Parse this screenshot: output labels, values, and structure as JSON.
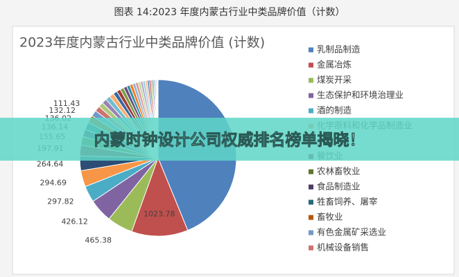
{
  "figure_caption": "图表 14:2023 年度内蒙古行业中类品牌价值（计数）",
  "banner": {
    "text": "内蒙时钟设计公司权威排名榜单揭晓！"
  },
  "chart_data": {
    "type": "pie",
    "title": "2023年度内蒙古行业中类品牌价值 (计数)",
    "categories": [
      "乳制品制造",
      "金属冶炼",
      "煤炭开采",
      "生态保护和环境治理业",
      "酒的制造",
      "化学原料和化学品制造业",
      null,
      "餐饮业",
      "农林畜牧业",
      "食品制造业",
      "牲畜饲养、屠宰",
      "畜牧业",
      "有色金属矿采选业",
      "机械设备销售",
      null,
      null,
      null,
      null,
      null,
      null,
      null,
      null,
      null,
      null,
      null,
      null,
      null,
      null,
      null,
      null,
      null,
      null,
      null,
      null,
      null,
      null,
      null,
      null,
      null
    ],
    "values": [
      3850,
      1023.78,
      465.38,
      426.12,
      297.82,
      294.69,
      264.64,
      197.91,
      155.65,
      136.14,
      136.02,
      132.12,
      111.43,
      97,
      92,
      88,
      85,
      80,
      75,
      70,
      66,
      62,
      58,
      55,
      52,
      49,
      46,
      43,
      40,
      37,
      34,
      31,
      28,
      25,
      22,
      19,
      16,
      13,
      10
    ],
    "value_labels": [
      null,
      "1023.78",
      "465.38",
      "426.12",
      "297.82",
      "294.69",
      "264.64",
      "197.91",
      "155.65",
      "136.14",
      "136.02",
      "132.12",
      "111.43",
      null,
      null,
      null,
      null,
      null,
      null,
      null,
      null,
      null,
      null,
      null,
      null,
      null,
      null,
      null,
      null,
      null,
      null,
      null,
      null,
      null,
      null,
      null,
      null,
      null,
      null
    ],
    "colors": [
      "#4f81bd",
      "#c0504d",
      "#9bbb59",
      "#8064a2",
      "#4bacc6",
      "#f79646",
      "#2c4d75",
      "#772c2a",
      "#5f7530",
      "#4d3b62",
      "#276a7c",
      "#b65708",
      "#729aca",
      "#cd7371",
      "#afc97a",
      "#9983b5",
      "#6fbdd1",
      "#f9ab6b",
      "#3a67a0",
      "#9f3b38",
      "#7f9c40",
      "#664f83",
      "#348da5",
      "#f27b17",
      "#95b3d7",
      "#d99694",
      "#c3d69b",
      "#b3a2c7",
      "#93cddd",
      "#fac090",
      "#4f81bd",
      "#c0504d",
      "#9bbb59",
      "#8064a2",
      "#4bacc6",
      "#f79646",
      "#2c4d75",
      "#772c2a",
      "#5f7530"
    ]
  }
}
